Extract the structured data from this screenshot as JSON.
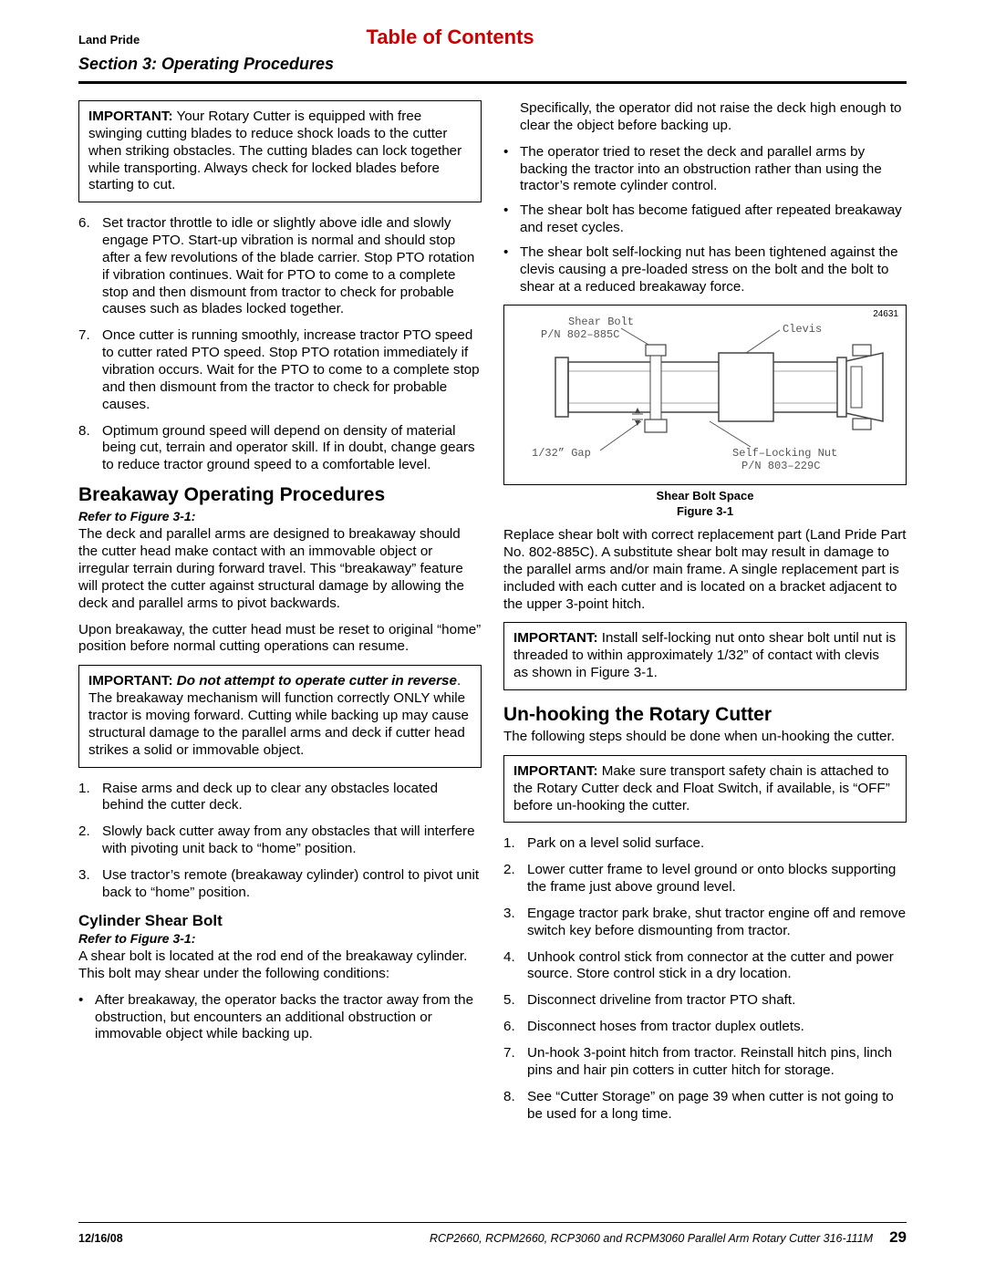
{
  "header": {
    "brand": "Land Pride",
    "toc": "Table of Contents",
    "section": "Section 3: Operating Procedures"
  },
  "left": {
    "important1_lead": "IMPORTANT:",
    "important1_text": " Your Rotary Cutter is equipped with free swinging cutting blades to reduce shock loads to the cutter when striking obstacles. The cutting blades can lock together while transporting. Always check for locked blades before starting to cut.",
    "list1": [
      {
        "n": "6.",
        "t": "Set tractor throttle to idle or slightly above idle and slowly engage PTO. Start-up vibration is normal and should stop after a few revolutions of the blade carrier. Stop PTO rotation if vibration continues. Wait for PTO to come to a complete stop and then dismount from tractor to check for probable causes such as blades locked together."
      },
      {
        "n": "7.",
        "t": "Once cutter is running smoothly, increase tractor PTO speed to cutter rated PTO speed. Stop PTO rotation immediately if vibration occurs. Wait for the PTO to come to a complete stop and then dismount from the tractor to check for probable causes."
      },
      {
        "n": "8.",
        "t": "Optimum ground speed will depend on density of material being cut, terrain and operator skill. If in doubt, change gears to reduce tractor ground speed to a comfortable level."
      }
    ],
    "h2_breakaway": "Breakaway Operating Procedures",
    "refer1": "Refer to Figure 3-1:",
    "breakaway_p1": "The deck and parallel arms are designed to breakaway should the cutter head make contact with an immovable object or irregular terrain during forward travel. This “breakaway” feature will protect the cutter against structural damage by allowing the deck and parallel arms to pivot backwards.",
    "breakaway_p2": "Upon breakaway, the cutter head must be reset to original “home” position before normal cutting operations can resume.",
    "important2_lead": "IMPORTANT:",
    "important2_em": " Do not attempt to operate cutter in reverse",
    "important2_text": ". The breakaway mechanism will function correctly ONLY while tractor is moving forward. Cutting while backing up may cause structural damage to the parallel arms and deck if cutter head strikes a solid or immovable object.",
    "list2": [
      {
        "n": "1.",
        "t": "Raise arms and deck up to clear any obstacles located behind the cutter deck."
      },
      {
        "n": "2.",
        "t": "Slowly back cutter away from any obstacles that will interfere with pivoting unit back to “home” position."
      },
      {
        "n": "3.",
        "t": "Use tractor’s remote (breakaway cylinder) control to pivot unit back to “home” position."
      }
    ],
    "h3_cylinder": "Cylinder Shear Bolt",
    "refer2": "Refer to Figure 3-1:",
    "cylinder_p1": "A shear bolt is located at the rod end of the breakaway cylinder. This bolt may shear under the following conditions:",
    "cylinder_bullets": [
      "After breakaway, the operator backs the tractor away from the obstruction, but encounters an additional obstruction or immovable object while backing up."
    ]
  },
  "right": {
    "top_p": "Specifically, the operator did not raise the deck high enough to clear the object before backing up.",
    "top_bullets": [
      "The operator tried to reset the deck and parallel arms by backing the tractor into an obstruction rather than using the tractor’s remote cylinder control.",
      "The shear bolt has become fatigued after repeated breakaway and reset cycles.",
      "The shear bolt self-locking nut has been tightened against the clevis causing a pre-loaded stress on the bolt and the bolt to shear at a reduced breakaway force."
    ],
    "figure": {
      "num": "24631",
      "shear_bolt": "Shear Bolt",
      "pn_bolt": "P/N 802–885C",
      "clevis": "Clevis",
      "gap": "1/32” Gap",
      "selflock": "Self–Locking Nut",
      "pn_nut": "P/N 803–229C",
      "caption1": "Shear Bolt Space",
      "caption2": "Figure 3-1"
    },
    "replace_p": "Replace shear bolt with correct replacement part (Land Pride Part No. 802-885C). A substitute shear bolt may result in damage to the parallel arms and/or main frame. A single replacement part is included with each cutter and is located on a bracket adjacent to the upper 3-point hitch.",
    "important3_lead": "IMPORTANT:",
    "important3_text": " Install self-locking nut onto shear bolt until nut is threaded to within approximately 1/32” of contact with clevis as shown in Figure 3-1.",
    "h2_unhook": "Un-hooking the Rotary Cutter",
    "unhook_p": "The following steps should be done when un-hooking the cutter.",
    "important4_lead": "IMPORTANT:",
    "important4_text": " Make sure transport safety chain is attached to the Rotary Cutter deck and Float Switch, if available, is “OFF” before un-hooking the cutter.",
    "unhook_list": [
      {
        "n": "1.",
        "t": "Park on a level solid surface."
      },
      {
        "n": "2.",
        "t": "Lower cutter frame to level ground or onto blocks supporting the frame just above ground level."
      },
      {
        "n": "3.",
        "t": "Engage tractor park brake, shut tractor engine off and remove switch key before dismounting from tractor."
      },
      {
        "n": "4.",
        "t": "Unhook control stick from connector at the cutter and power source. Store control stick in a dry location."
      },
      {
        "n": "5.",
        "t": "Disconnect driveline from tractor PTO shaft."
      },
      {
        "n": "6.",
        "t": "Disconnect hoses from tractor duplex outlets."
      },
      {
        "n": "7.",
        "t": "Un-hook 3-point hitch from tractor. Reinstall hitch pins, linch pins and hair pin cotters in cutter hitch for storage."
      },
      {
        "n": "8.",
        "t": "See “Cutter Storage” on page 39 when cutter is not going to be used for a long time."
      }
    ]
  },
  "footer": {
    "date": "12/16/08",
    "models": "RCP2660, RCPM2660, RCP3060 and RCPM3060 Parallel Arm Rotary Cutter   316-111M",
    "page": "29"
  }
}
